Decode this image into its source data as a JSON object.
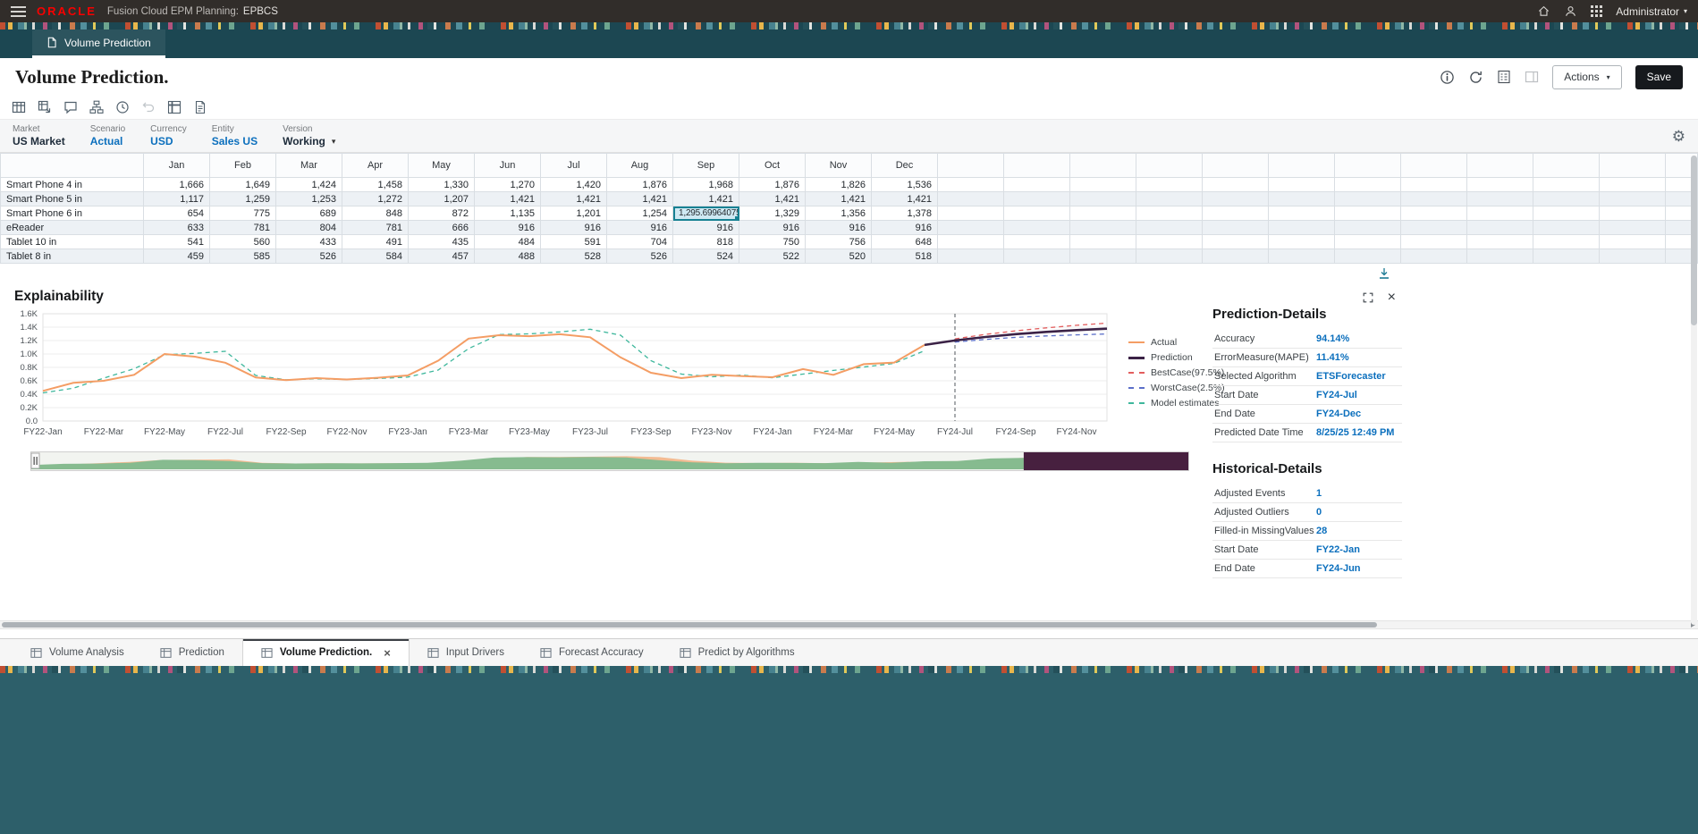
{
  "colors": {
    "oracle_red": "#f80000",
    "accent_blue": "#0b6fbd",
    "teal_banner": "#1c4752",
    "teal_footer": "#2d5f6a",
    "selection": "#178193",
    "actual": "#f49d64",
    "prediction": "#3b2246",
    "best_case": "#e25d5d",
    "worst_case": "#5b6fc9",
    "model_estimates": "#3eb79c"
  },
  "glyphs": {
    "caret": "▾",
    "gear": "⚙",
    "close": "×"
  },
  "topbar": {
    "brand": "ORACLE",
    "product": "Fusion Cloud EPM Planning:",
    "app": "EPBCS",
    "user": "Administrator",
    "icons": [
      "home",
      "user",
      "apps-grid"
    ]
  },
  "banner": {
    "doc_tab": "Volume Prediction"
  },
  "page": {
    "title": "Volume Prediction.",
    "actions_label": "Actions",
    "save_label": "Save",
    "icons": [
      {
        "name": "info"
      },
      {
        "name": "refresh"
      },
      {
        "name": "validate"
      },
      {
        "name": "panel",
        "disabled": true
      }
    ]
  },
  "toolbar": {
    "icons": [
      {
        "name": "data-grid"
      },
      {
        "name": "adhoc-grid"
      },
      {
        "name": "comments"
      },
      {
        "name": "member-hierarchy"
      },
      {
        "name": "job-console"
      },
      {
        "name": "undo",
        "disabled": true
      },
      {
        "name": "freeze"
      },
      {
        "name": "report"
      }
    ]
  },
  "pov": {
    "items": [
      {
        "dim": "Market",
        "member": "US Market",
        "style": "dark"
      },
      {
        "dim": "Scenario",
        "member": "Actual",
        "style": "link"
      },
      {
        "dim": "Currency",
        "member": "USD",
        "style": "link"
      },
      {
        "dim": "Entity",
        "member": "Sales US",
        "style": "link"
      },
      {
        "dim": "Version",
        "member": "Working",
        "style": "dark",
        "caret": true
      }
    ]
  },
  "grid": {
    "columns": [
      "Jan",
      "Feb",
      "Mar",
      "Apr",
      "May",
      "Jun",
      "Jul",
      "Aug",
      "Sep",
      "Oct",
      "Nov",
      "Dec"
    ],
    "rows": [
      {
        "label": "Smart Phone 4 in",
        "values": [
          "1,666",
          "1,649",
          "1,424",
          "1,458",
          "1,330",
          "1,270",
          "1,420",
          "1,876",
          "1,968",
          "1,876",
          "1,826",
          "1,536"
        ]
      },
      {
        "label": "Smart Phone 5 in",
        "values": [
          "1,117",
          "1,259",
          "1,253",
          "1,272",
          "1,207",
          "1,421",
          "1,421",
          "1,421",
          "1,421",
          "1,421",
          "1,421",
          "1,421"
        ]
      },
      {
        "label": "Smart Phone 6 in",
        "values": [
          "654",
          "775",
          "689",
          "848",
          "872",
          "1,135",
          "1,201",
          "1,254",
          "1,295.699640753",
          "1,329",
          "1,356",
          "1,378"
        ],
        "selected": 8
      },
      {
        "label": "eReader",
        "values": [
          "633",
          "781",
          "804",
          "781",
          "666",
          "916",
          "916",
          "916",
          "916",
          "916",
          "916",
          "916"
        ]
      },
      {
        "label": "Tablet 10 in",
        "values": [
          "541",
          "560",
          "433",
          "491",
          "435",
          "484",
          "591",
          "704",
          "818",
          "750",
          "756",
          "648"
        ]
      },
      {
        "label": "Tablet 8 in",
        "values": [
          "459",
          "585",
          "526",
          "584",
          "457",
          "488",
          "528",
          "526",
          "524",
          "522",
          "520",
          "518"
        ]
      }
    ]
  },
  "explainability": {
    "title": "Explainability"
  },
  "chart_data": {
    "type": "line",
    "title": "Explainability",
    "x": [
      "FY22-Jan",
      "FY22-Feb",
      "FY22-Mar",
      "FY22-Apr",
      "FY22-May",
      "FY22-Jun",
      "FY22-Jul",
      "FY22-Aug",
      "FY22-Sep",
      "FY22-Oct",
      "FY22-Nov",
      "FY22-Dec",
      "FY23-Jan",
      "FY23-Feb",
      "FY23-Mar",
      "FY23-Apr",
      "FY23-May",
      "FY23-Jun",
      "FY23-Jul",
      "FY23-Aug",
      "FY23-Sep",
      "FY23-Oct",
      "FY23-Nov",
      "FY23-Dec",
      "FY24-Jan",
      "FY24-Feb",
      "FY24-Mar",
      "FY24-Apr",
      "FY24-May",
      "FY24-Jun",
      "FY24-Jul",
      "FY24-Aug",
      "FY24-Sep",
      "FY24-Oct",
      "FY24-Nov",
      "FY24-Dec"
    ],
    "x_tick_every": 2,
    "ylim": [
      0,
      1600
    ],
    "yticks": [
      "0.0",
      "0.2K",
      "0.4K",
      "0.6K",
      "0.8K",
      "1.0K",
      "1.2K",
      "1.4K",
      "1.6K"
    ],
    "grid": "horizontal",
    "legend_position": "right",
    "prediction_start_index": 30,
    "series": [
      {
        "name": "Actual",
        "color": "#f49d64",
        "style": "solid",
        "values": [
          450,
          570,
          600,
          690,
          1000,
          960,
          870,
          650,
          610,
          640,
          620,
          645,
          680,
          900,
          1230,
          1280,
          1265,
          1295,
          1250,
          950,
          720,
          640,
          690,
          670,
          654,
          775,
          689,
          848,
          872,
          1135,
          null,
          null,
          null,
          null,
          null,
          null
        ]
      },
      {
        "name": "Prediction",
        "color": "#3b2246",
        "style": "solid",
        "values": [
          null,
          null,
          null,
          null,
          null,
          null,
          null,
          null,
          null,
          null,
          null,
          null,
          null,
          null,
          null,
          null,
          null,
          null,
          null,
          null,
          null,
          null,
          null,
          null,
          null,
          null,
          null,
          null,
          null,
          1135,
          1201,
          1254,
          1295.7,
          1329,
          1356,
          1378
        ]
      },
      {
        "name": "BestCase(97.5%)",
        "color": "#e25d5d",
        "style": "dashed",
        "values": [
          null,
          null,
          null,
          null,
          null,
          null,
          null,
          null,
          null,
          null,
          null,
          null,
          null,
          null,
          null,
          null,
          null,
          null,
          null,
          null,
          null,
          null,
          null,
          null,
          null,
          null,
          null,
          null,
          null,
          null,
          1225,
          1292,
          1345,
          1390,
          1428,
          1460
        ]
      },
      {
        "name": "WorstCase(2.5%)",
        "color": "#5b6fc9",
        "style": "dashed",
        "values": [
          null,
          null,
          null,
          null,
          null,
          null,
          null,
          null,
          null,
          null,
          null,
          null,
          null,
          null,
          null,
          null,
          null,
          null,
          null,
          null,
          null,
          null,
          null,
          null,
          null,
          null,
          null,
          null,
          null,
          null,
          1178,
          1218,
          1248,
          1270,
          1286,
          1298
        ]
      },
      {
        "name": "Model estimates",
        "color": "#3eb79c",
        "style": "dashed",
        "values": [
          420,
          490,
          640,
          780,
          990,
          1010,
          1040,
          680,
          615,
          630,
          620,
          635,
          655,
          760,
          1080,
          1290,
          1300,
          1330,
          1370,
          1280,
          900,
          700,
          660,
          685,
          645,
          700,
          755,
          805,
          860,
          1050,
          null,
          null,
          null,
          null,
          null,
          null
        ]
      }
    ]
  },
  "prediction_details": {
    "title": "Prediction-Details",
    "rows": [
      {
        "label": "Accuracy",
        "value": "94.14%"
      },
      {
        "label": "ErrorMeasure(MAPE)",
        "value": "11.41%"
      },
      {
        "label": "Selected Algorithm",
        "value": "ETSForecaster"
      },
      {
        "label": "Start Date",
        "value": "FY24-Jul"
      },
      {
        "label": "End Date",
        "value": "FY24-Dec"
      },
      {
        "label": "Predicted Date Time",
        "value": "8/25/25 12:49 PM"
      }
    ]
  },
  "historical_details": {
    "title": "Historical-Details",
    "rows": [
      {
        "label": "Adjusted Events",
        "value": "1"
      },
      {
        "label": "Adjusted Outliers",
        "value": "0"
      },
      {
        "label": "Filled-in MissingValues",
        "value": "28"
      },
      {
        "label": "Start Date",
        "value": "FY22-Jan"
      },
      {
        "label": "End Date",
        "value": "FY24-Jun"
      }
    ]
  },
  "bottom_tabs": [
    {
      "label": "Volume Analysis",
      "slug": "volume-analysis"
    },
    {
      "label": "Prediction",
      "slug": "prediction"
    },
    {
      "label": "Volume Prediction.",
      "slug": "volume-prediction",
      "active": true,
      "closable": true
    },
    {
      "label": "Input Drivers",
      "slug": "input-drivers"
    },
    {
      "label": "Forecast Accuracy",
      "slug": "forecast-accuracy"
    },
    {
      "label": "Predict by Algorithms",
      "slug": "predict-by-algorithms"
    }
  ]
}
